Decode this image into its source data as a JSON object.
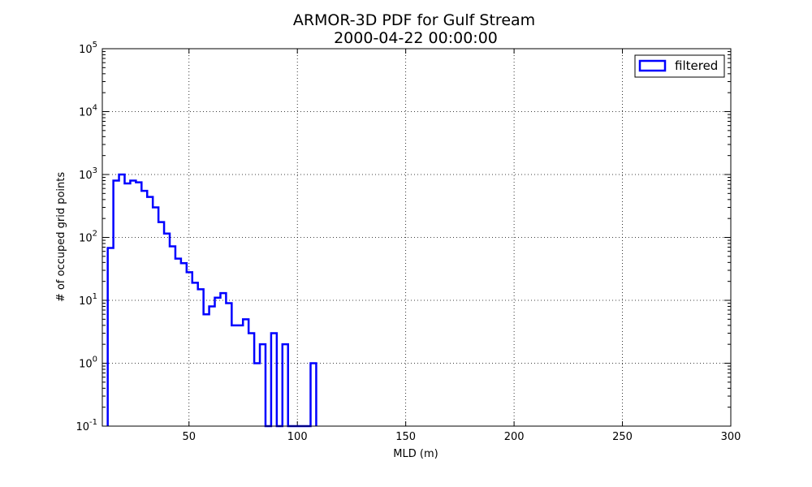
{
  "chart_data": {
    "type": "line",
    "title": "ARMOR-3D PDF for Gulf Stream",
    "subtitle": "2000-04-22 00:00:00",
    "xlabel": "MLD (m)",
    "ylabel": "# of occuped grid points",
    "xlim": [
      10,
      300
    ],
    "ylim": [
      0.1,
      100000
    ],
    "yscale": "log",
    "grid": true,
    "legend_placement": "top-right",
    "x_ticks": [
      "50",
      "100",
      "150",
      "200",
      "250",
      "300"
    ],
    "y_ticks": [
      {
        "base": "10",
        "exp": "-1"
      },
      {
        "base": "10",
        "exp": "0"
      },
      {
        "base": "10",
        "exp": "1"
      },
      {
        "base": "10",
        "exp": "2"
      },
      {
        "base": "10",
        "exp": "3"
      },
      {
        "base": "10",
        "exp": "4"
      },
      {
        "base": "10",
        "exp": "5"
      }
    ],
    "bin_width": 2.6,
    "series": [
      {
        "name": "filtered",
        "color": "#0000ff",
        "style": "step",
        "bin_edges_start": 12.5,
        "values": [
          68,
          800,
          1000,
          720,
          800,
          750,
          550,
          440,
          300,
          175,
          115,
          72,
          46,
          39,
          28,
          19,
          15,
          6,
          8,
          11,
          13,
          9,
          4,
          4,
          5,
          3,
          1,
          2,
          0,
          3,
          0,
          2,
          0,
          0,
          0,
          0,
          1
        ]
      }
    ]
  }
}
